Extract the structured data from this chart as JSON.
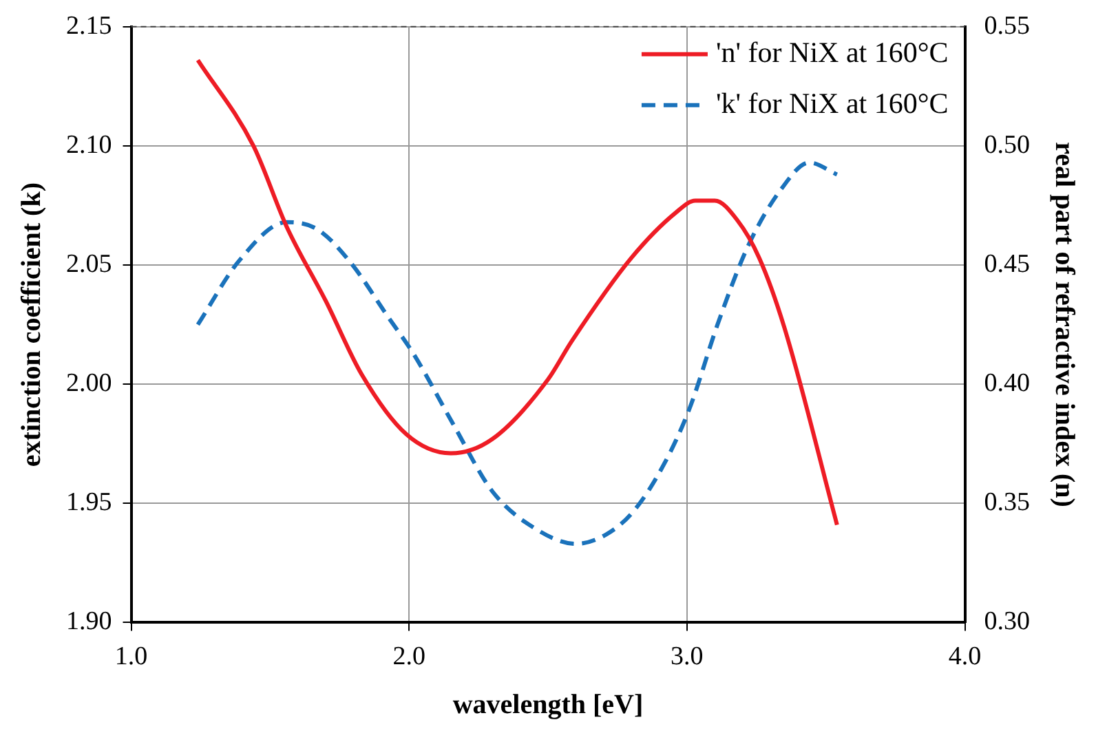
{
  "chart_data": {
    "type": "line",
    "xlabel": "wavelength [eV]",
    "ylabel": "extinction coefficient (k)",
    "y2label": "real part of refractive index (n)",
    "xlim": [
      1.0,
      4.0
    ],
    "xticks": [
      {
        "value": 1,
        "label": "1.0"
      },
      {
        "value": 2,
        "label": "2.0"
      },
      {
        "value": 3,
        "label": "3.0"
      },
      {
        "value": 4,
        "label": "4.0"
      }
    ],
    "ylim": [
      1.9,
      2.15
    ],
    "yticks": [
      {
        "value": 1.9,
        "label": "1.90"
      },
      1.95,
      {
        "value": 2,
        "label": "2.00"
      },
      2.05,
      {
        "value": 2.1,
        "label": "2.10"
      },
      2.15
    ],
    "y2lim": [
      0.3,
      0.55
    ],
    "y2ticks": [
      {
        "value": 0.3,
        "label": "0.30"
      },
      0.35,
      {
        "value": 0.4,
        "label": "0.40"
      },
      0.45,
      {
        "value": 0.5,
        "label": "0.50"
      },
      0.55
    ],
    "grid": true,
    "legend": "top right",
    "marker": "none",
    "series": [
      {
        "name": "'n' for NiX at 160°C",
        "color": "#ee1c25",
        "axis": "y2",
        "line_style": "solid",
        "x": [
          1.24,
          1.44,
          1.56,
          1.7,
          1.83,
          1.99,
          2.15,
          2.3,
          2.5,
          2.585,
          2.8,
          2.96,
          3.03,
          3.1,
          3.18,
          3.26,
          3.35,
          3.54
        ],
        "values": [
          0.536,
          0.5,
          0.466,
          0.435,
          0.404,
          0.379,
          0.371,
          0.377,
          0.402,
          0.418,
          0.453,
          0.472,
          0.477,
          0.477,
          0.469,
          0.453,
          0.424,
          0.341
        ]
      },
      {
        "name": "'k' for NiX at 160°C",
        "color": "#1a72bb",
        "axis": "y",
        "line_style": "dashed",
        "x": [
          1.24,
          1.39,
          1.56,
          1.67,
          1.79,
          1.92,
          2.02,
          2.16,
          2.3,
          2.46,
          2.6,
          2.71,
          2.81,
          2.92,
          3.01,
          3.11,
          3.22,
          3.34,
          3.44,
          3.54
        ],
        "values": [
          2.025,
          2.052,
          2.068,
          2.065,
          2.051,
          2.029,
          2.012,
          1.983,
          1.955,
          1.939,
          1.933,
          1.937,
          1.947,
          1.967,
          1.99,
          2.025,
          2.058,
          2.082,
          2.093,
          2.088
        ]
      }
    ]
  }
}
